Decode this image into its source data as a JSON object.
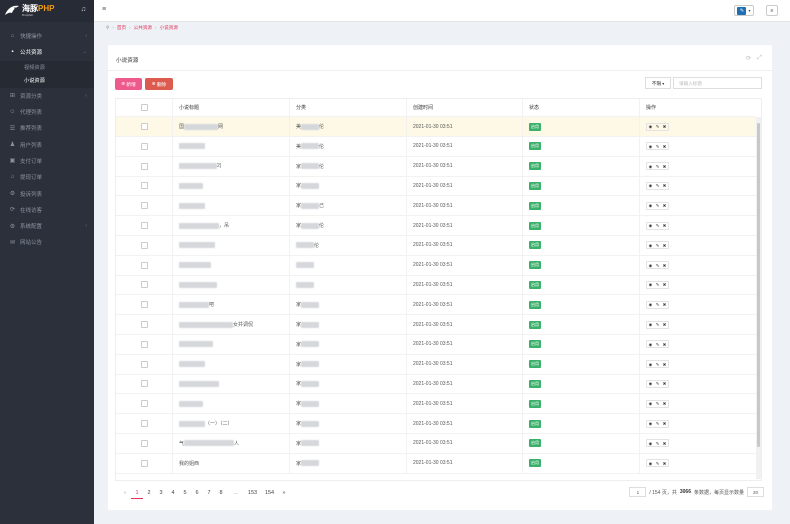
{
  "app": {
    "logo_main": "海豚",
    "logo_accent": "PHP",
    "logo_sub": "Dolphin",
    "bell_icon": "bell-icon"
  },
  "sidebar": {
    "items": [
      {
        "label": "快捷操作",
        "icon": "dashboard-icon",
        "glyph": "⌂",
        "chevron": "‹"
      },
      {
        "label": "公共资源",
        "icon": "book-icon",
        "glyph": "▪",
        "chevron": "⌄",
        "active": true
      },
      {
        "label": "资源分类",
        "icon": "grid-icon",
        "glyph": "⊞",
        "chevron": "‹"
      },
      {
        "label": "代理列表",
        "icon": "users-icon",
        "glyph": "☺",
        "chevron": ""
      },
      {
        "label": "推荐列表",
        "icon": "list-icon",
        "glyph": "☰",
        "chevron": ""
      },
      {
        "label": "用户列表",
        "icon": "user-icon",
        "glyph": "♟",
        "chevron": ""
      },
      {
        "label": "支付订单",
        "icon": "order-icon",
        "glyph": "▣",
        "chevron": ""
      },
      {
        "label": "提现订单",
        "icon": "bank-icon",
        "glyph": "⌂",
        "chevron": ""
      },
      {
        "label": "投诉列表",
        "icon": "gear-icon",
        "glyph": "⚙",
        "chevron": ""
      },
      {
        "label": "在线访客",
        "icon": "refresh-icon",
        "glyph": "⟳",
        "chevron": ""
      },
      {
        "label": "系统配置",
        "icon": "settings-icon",
        "glyph": "⚙",
        "chevron": "‹"
      },
      {
        "label": "网站公告",
        "icon": "megaphone-icon",
        "glyph": "✉",
        "chevron": ""
      }
    ],
    "subitems": [
      {
        "label": "视频资源"
      },
      {
        "label": "小说资源",
        "current": true
      }
    ]
  },
  "topbar": {
    "menu_icon": "hamburger-icon",
    "avatar_glyph": "✎",
    "avatar_caret": "▾",
    "more_glyph": "≡"
  },
  "breadcrumb": {
    "home_icon": "location-pin-icon",
    "home_glyph": "⚲",
    "items": [
      "首页",
      "公共资源",
      "小说资源"
    ],
    "separator": "›"
  },
  "card": {
    "title": "小说资源",
    "refresh_glyph": "⟳",
    "fullscreen_glyph": "⤢"
  },
  "toolbar": {
    "add_label": "新增",
    "add_glyph": "⊕",
    "delete_label": "删除",
    "delete_glyph": "⊗",
    "filter_value": "不限",
    "filter_caret": "▾",
    "search_placeholder": "请输入标题"
  },
  "table": {
    "headers": [
      "小说标题",
      "分类",
      "创建时间",
      "状态",
      "操作"
    ],
    "rows": [
      {
        "title_prefix": "国",
        "title_suffix": "网",
        "cat_prefix": "美",
        "cat_suffix": "伦",
        "time": "2021-01-30 03:51",
        "status": "启用"
      },
      {
        "title_prefix": "",
        "title_suffix": "",
        "cat_prefix": "美",
        "cat_suffix": "伦",
        "time": "2021-01-30 03:51",
        "status": "启用"
      },
      {
        "title_prefix": "",
        "title_suffix": "2)",
        "cat_prefix": "家",
        "cat_suffix": "伦",
        "time": "2021-01-30 03:51",
        "status": "启用"
      },
      {
        "title_prefix": "",
        "title_suffix": "",
        "cat_prefix": "家",
        "cat_suffix": "",
        "time": "2021-01-30 03:51",
        "status": "启用"
      },
      {
        "title_prefix": "",
        "title_suffix": "",
        "cat_prefix": "家",
        "cat_suffix": "己",
        "time": "2021-01-30 03:51",
        "status": "启用"
      },
      {
        "title_prefix": "",
        "title_suffix": "，吊",
        "cat_prefix": "家",
        "cat_suffix": "伦",
        "time": "2021-01-30 03:51",
        "status": "启用"
      },
      {
        "title_prefix": "",
        "title_suffix": "",
        "cat_prefix": "",
        "cat_suffix": "伦",
        "time": "2021-01-30 03:51",
        "status": "启用"
      },
      {
        "title_prefix": "",
        "title_suffix": "",
        "cat_prefix": "",
        "cat_suffix": "",
        "time": "2021-01-30 03:51",
        "status": "启用"
      },
      {
        "title_prefix": "",
        "title_suffix": "",
        "cat_prefix": "",
        "cat_suffix": "",
        "time": "2021-01-30 03:51",
        "status": "启用"
      },
      {
        "title_prefix": "",
        "title_suffix": "吧",
        "cat_prefix": "家",
        "cat_suffix": "",
        "time": "2021-01-30 03:51",
        "status": "启用"
      },
      {
        "title_prefix": "",
        "title_suffix": "女并调侃",
        "cat_prefix": "家",
        "cat_suffix": "",
        "time": "2021-01-30 03:51",
        "status": "启用"
      },
      {
        "title_prefix": "",
        "title_suffix": "",
        "cat_prefix": "家",
        "cat_suffix": "",
        "time": "2021-01-30 03:51",
        "status": "启用"
      },
      {
        "title_prefix": "",
        "title_suffix": "",
        "cat_prefix": "家",
        "cat_suffix": "",
        "time": "2021-01-30 03:51",
        "status": "启用"
      },
      {
        "title_prefix": "",
        "title_suffix": "",
        "cat_prefix": "家",
        "cat_suffix": "",
        "time": "2021-01-30 03:51",
        "status": "启用"
      },
      {
        "title_prefix": "",
        "title_suffix": "",
        "cat_prefix": "家",
        "cat_suffix": "",
        "time": "2021-01-30 03:51",
        "status": "启用"
      },
      {
        "title_prefix": "",
        "title_suffix": "（一）（二）",
        "cat_prefix": "家",
        "cat_suffix": "",
        "time": "2021-01-30 03:51",
        "status": "启用"
      },
      {
        "title_prefix": "气",
        "title_suffix": "人",
        "cat_prefix": "家",
        "cat_suffix": "",
        "time": "2021-01-30 03:51",
        "status": "启用"
      },
      {
        "title_prefix": "我的姐西",
        "title_suffix": "",
        "cat_prefix": "家",
        "cat_suffix": "",
        "time": "2021-01-30 03:51",
        "status": "启用"
      }
    ]
  },
  "pager": {
    "prev": "«",
    "pages": [
      "1",
      "2",
      "3",
      "4",
      "5",
      "6",
      "7",
      "8",
      "...",
      "153",
      "154"
    ],
    "next": "»",
    "current_page": "1",
    "total_pages_text": "/ 154 页，共",
    "total_count": "3066",
    "count_suffix": "条数据，每页显示数量",
    "page_size": "20"
  }
}
